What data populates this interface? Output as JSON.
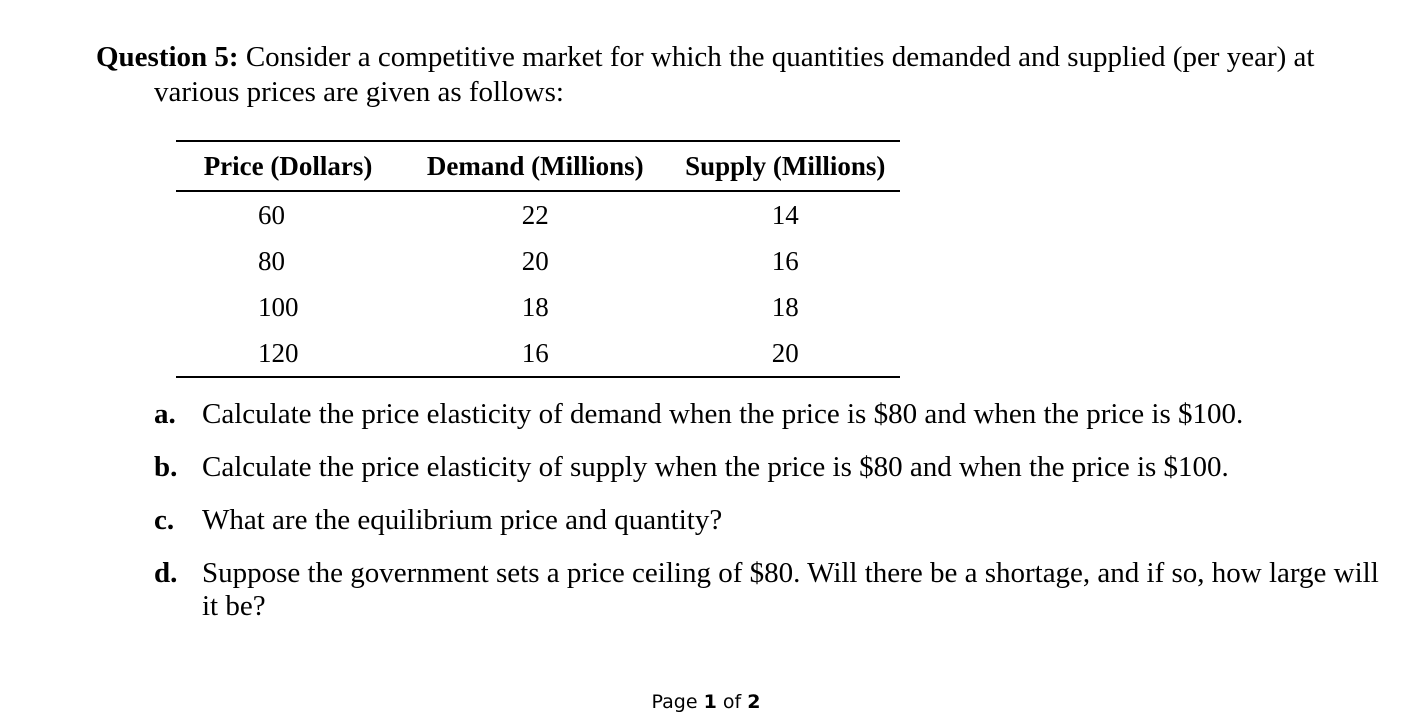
{
  "question": {
    "label": "Question 5:",
    "text": " Consider a competitive market for which the quantities demanded and supplied (per year) at various prices are given as follows:"
  },
  "table": {
    "headers": [
      "Price (Dollars)",
      "Demand (Millions)",
      "Supply (Millions)"
    ],
    "rows": [
      [
        "60",
        "22",
        "14"
      ],
      [
        "80",
        "20",
        "16"
      ],
      [
        "100",
        "18",
        "18"
      ],
      [
        "120",
        "16",
        "20"
      ]
    ]
  },
  "parts": [
    {
      "letter": "a.",
      "text": "Calculate the price elasticity of demand when the price is $80 and when the price is $100."
    },
    {
      "letter": "b.",
      "text": "Calculate the price elasticity of supply when the price is $80 and when the price is $100."
    },
    {
      "letter": "c.",
      "text": "What are the equilibrium price and quantity?"
    },
    {
      "letter": "d.",
      "text": "Suppose the government sets a price ceiling of $80. Will there be a shortage, and if so, how large will it be?"
    }
  ],
  "footer": {
    "prefix": "Page ",
    "current": "1",
    "middle": " of ",
    "total": "2"
  }
}
